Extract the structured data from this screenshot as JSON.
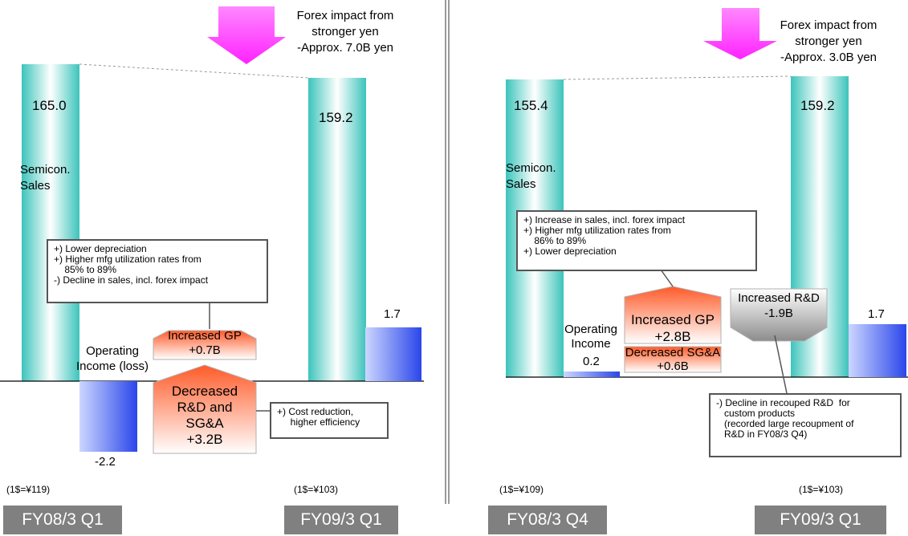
{
  "chart_data": [
    {
      "type": "waterfall",
      "forex_note": [
        "Forex impact from",
        "stronger yen",
        "-Approx. 7.0B yen"
      ],
      "categories": [
        "FY08/3 Q1",
        "FY09/3 Q1"
      ],
      "exchange_rates": [
        "(1$=¥119)",
        "(1$=¥103)"
      ],
      "sales": {
        "label": [
          "Semicon.",
          "Sales"
        ],
        "values": [
          165.0,
          159.2
        ],
        "value_labels": [
          "165.0",
          "159.2"
        ]
      },
      "operating_income": {
        "label": [
          "Operating",
          "Income (loss)"
        ],
        "values": [
          -2.2,
          1.7
        ],
        "value_labels": [
          "-2.2",
          "1.7"
        ]
      },
      "bridge": [
        {
          "label": "Increased GP",
          "value_label": "+0.7B",
          "value": 0.7
        },
        {
          "label": "Decreased R&D and SG&A",
          "label_lines": [
            "Decreased",
            "R&D and",
            "SG&A"
          ],
          "value_label": "+3.2B",
          "value": 3.2
        }
      ],
      "notes": [
        "+) Lower depreciation\n+) Higher mfg utilization rates from\n    85% to 89%\n-) Decline in sales, incl. forex impact",
        "+) Cost reduction,\n     higher efficiency"
      ]
    },
    {
      "type": "waterfall",
      "forex_note": [
        "Forex impact from",
        "stronger yen",
        "-Approx. 3.0B yen"
      ],
      "categories": [
        "FY08/3 Q4",
        "FY09/3 Q1"
      ],
      "exchange_rates": [
        "(1$=¥109)",
        "(1$=¥103)"
      ],
      "sales": {
        "label": [
          "Semicon.",
          "Sales"
        ],
        "values": [
          155.4,
          159.2
        ],
        "value_labels": [
          "155.4",
          "159.2"
        ]
      },
      "operating_income": {
        "label": [
          "Operating",
          "Income"
        ],
        "values": [
          0.2,
          1.7
        ],
        "value_labels": [
          "0.2",
          "1.7"
        ]
      },
      "bridge": [
        {
          "label": "Increased GP",
          "value_label": "+2.8B",
          "value": 2.8
        },
        {
          "label": "Decreased SG&A",
          "value_label": "+0.6B",
          "value": 0.6
        },
        {
          "label": "Increased R&D",
          "value_label": "-1.9B",
          "value": -1.9
        }
      ],
      "notes": [
        "+) Increase in sales, incl. forex impact\n+) Higher mfg utilization rates from\n    86% to 89%\n+) Lower depreciation",
        "-) Decline in recouped R&D  for\n   custom products\n   (recorded large recoupment of\n   R&D in FY08/3 Q4)"
      ]
    }
  ],
  "colors": {
    "sales_bar": "#5fd0c8",
    "income_bar": "#3355ee",
    "bridge_up": "#ff6a3d",
    "bridge_down": "#9a9a9a",
    "forex_arrow": "#ff44ff",
    "period_bg": "#808080"
  }
}
